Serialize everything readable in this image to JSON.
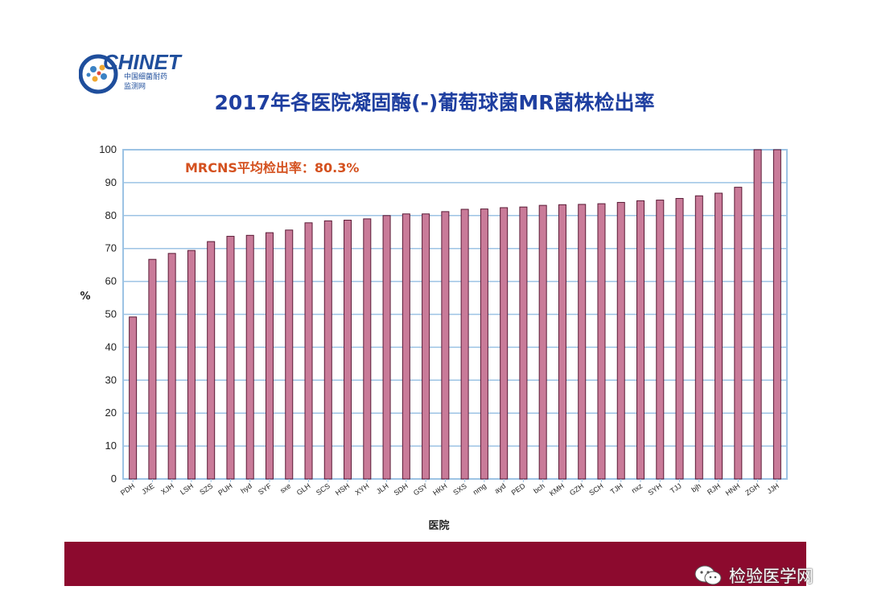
{
  "logo": {
    "name": "CHINET",
    "sub1": "中国细菌耐药",
    "sub2": "监测网"
  },
  "title": "2017年各医院凝固酶(-)葡萄球菌MR菌株检出率",
  "annotation": "MRCNS平均检出率：80.3%",
  "watermark": "检验医学网",
  "colors": {
    "bar": "#c97b99",
    "bar_edge": "#5a1a35",
    "plot_border": "#9cc3e4",
    "footer": "#8c0a2e",
    "title": "#1f3fa0"
  },
  "chart_data": {
    "type": "bar",
    "title": "2017年各医院凝固酶(-)葡萄球菌MR菌株检出率",
    "xlabel": "医院",
    "ylabel": "%",
    "ylim": [
      0,
      100
    ],
    "yticks": [
      0,
      10,
      20,
      30,
      40,
      50,
      60,
      70,
      80,
      90,
      100
    ],
    "grid": true,
    "categories": [
      "PDH",
      "JXE",
      "XJH",
      "LSH",
      "SZS",
      "PUH",
      "hyd",
      "SYF",
      "sxe",
      "GLH",
      "SCS",
      "HSH",
      "XYH",
      "JLH",
      "SDH",
      "GSY",
      "HKH",
      "SXS",
      "nmg",
      "ayd",
      "PED",
      "bch",
      "KMH",
      "GZH",
      "SCH",
      "TJH",
      "nxz",
      "SYH",
      "TJJ",
      "bjh",
      "RJH",
      "HNH",
      "ZGH",
      "JJH"
    ],
    "values": [
      49.2,
      66.7,
      68.5,
      69.4,
      72.1,
      73.7,
      74.0,
      74.8,
      75.6,
      77.8,
      78.4,
      78.6,
      79.0,
      80.0,
      80.5,
      80.5,
      81.2,
      81.9,
      82.0,
      82.4,
      82.6,
      83.1,
      83.3,
      83.4,
      83.6,
      84.0,
      84.5,
      84.7,
      85.2,
      86.0,
      86.8,
      88.6,
      100,
      100
    ]
  }
}
